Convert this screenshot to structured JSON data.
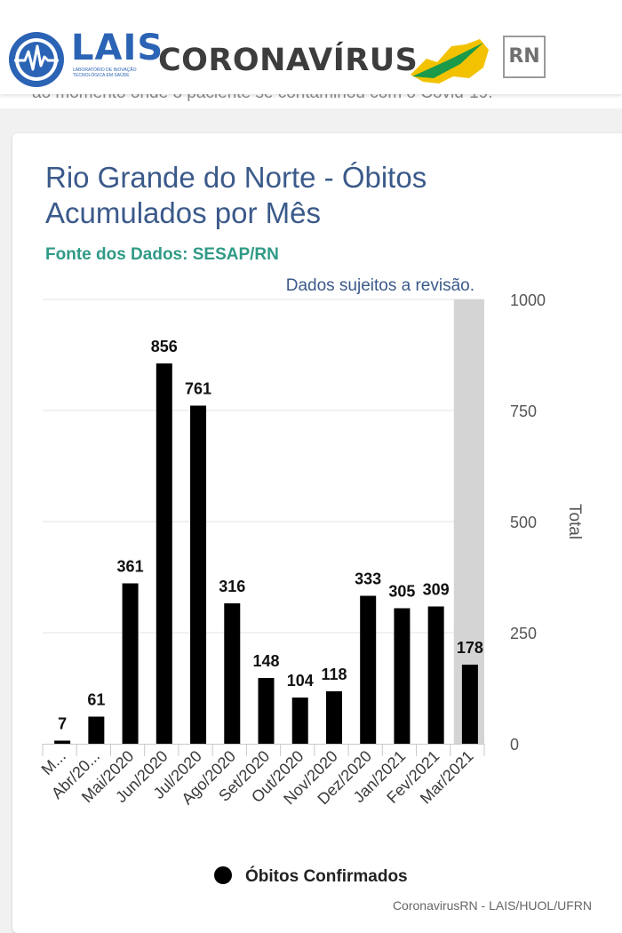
{
  "header": {
    "logo_text": "LAIS",
    "logo_tagline": "Laboratório de Inovação Tecnológica em Saúde",
    "title": "CORONAVÍRUS",
    "state_badge": "RN"
  },
  "behind_text": "ao momento onde o paciente se contaminou com o Covid-19.",
  "colors": {
    "brand_blue": "#2b63b5",
    "title_blue": "#3b5a8a",
    "subtitle_green": "#2f9a86",
    "bar": "#000000",
    "revision_band": "#d4d4d4"
  },
  "chart_data": {
    "type": "bar",
    "title": "Rio Grande do Norte - Óbitos Acumulados por Mês",
    "subtitle": "Fonte dos Dados: SESAP/RN",
    "note": "Dados sujeitos a revisão.",
    "categories": [
      "M...",
      "Abr/20...",
      "Mai/2020",
      "Jun/2020",
      "Jul/2020",
      "Ago/2020",
      "Set/2020",
      "Out/2020",
      "Nov/2020",
      "Dez/2020",
      "Jan/2021",
      "Fev/2021",
      "Mar/2021"
    ],
    "series": [
      {
        "name": "Óbitos Confirmados",
        "values": [
          7,
          61,
          361,
          856,
          761,
          316,
          148,
          104,
          118,
          333,
          305,
          309,
          178
        ],
        "color": "#000000"
      }
    ],
    "ylabel": "Total",
    "ylim": [
      0,
      1000
    ],
    "yticks": [
      0,
      250,
      500,
      750,
      1000
    ],
    "y_axis_side": "right",
    "grid": true,
    "legend": "bottom-center",
    "data_labels": true,
    "highlighted_category": "Mar/2021"
  },
  "credits": "CoronavirusRN - LAIS/HUOL/UFRN"
}
